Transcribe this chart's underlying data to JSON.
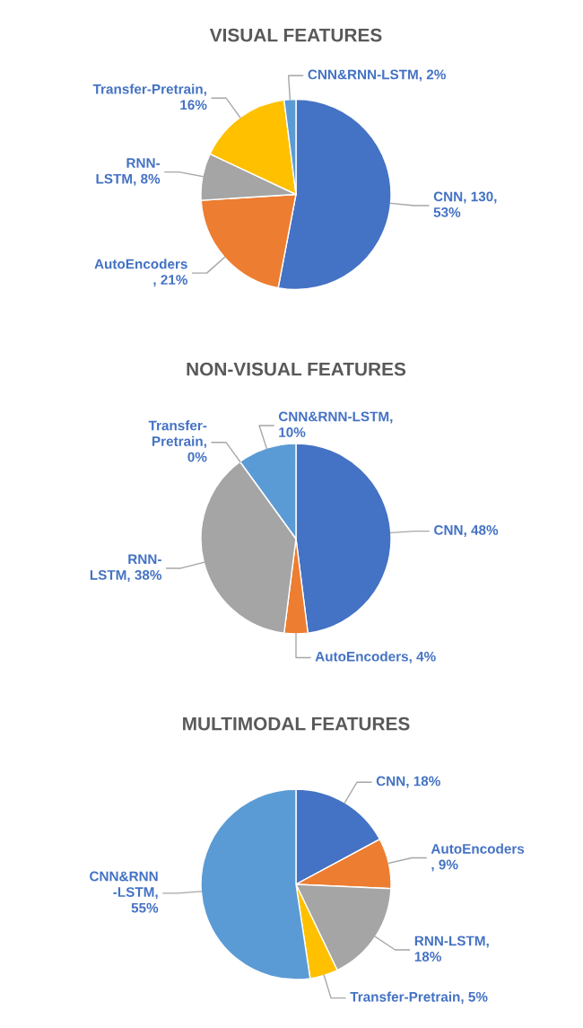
{
  "chart_data": [
    {
      "type": "pie",
      "title": "VISUAL FEATURES",
      "categories": [
        "CNN, 130,\n53%",
        "AutoEncoders\n, 21%",
        "RNN-\nLSTM, 8%",
        "Transfer-Pretrain,\n16%",
        "CNN&RNN-LSTM, 2%"
      ],
      "values": [
        53,
        21,
        8,
        16,
        2
      ],
      "colors": [
        "#4472c4",
        "#ed7d31",
        "#a5a5a5",
        "#ffc000",
        "#5b9bd5"
      ]
    },
    {
      "type": "pie",
      "title": "NON-VISUAL FEATURES",
      "categories": [
        "CNN, 48%",
        "AutoEncoders, 4%",
        "RNN-\nLSTM, 38%",
        "Transfer-\nPretrain,\n0%",
        "CNN&RNN-LSTM,\n10%"
      ],
      "values": [
        48,
        4,
        38,
        0,
        10
      ],
      "colors": [
        "#4472c4",
        "#ed7d31",
        "#a5a5a5",
        "#ffc000",
        "#5b9bd5"
      ]
    },
    {
      "type": "pie",
      "title": "MULTIMODAL FEATURES",
      "categories": [
        "CNN, 18%",
        "AutoEncoders\n, 9%",
        "RNN-LSTM,\n18%",
        "Transfer-Pretrain, 5%",
        "CNN&RNN\n-LSTM,\n55%"
      ],
      "values": [
        18,
        9,
        18,
        5,
        55
      ],
      "colors": [
        "#4472c4",
        "#ed7d31",
        "#a5a5a5",
        "#ffc000",
        "#5b9bd5"
      ]
    }
  ]
}
